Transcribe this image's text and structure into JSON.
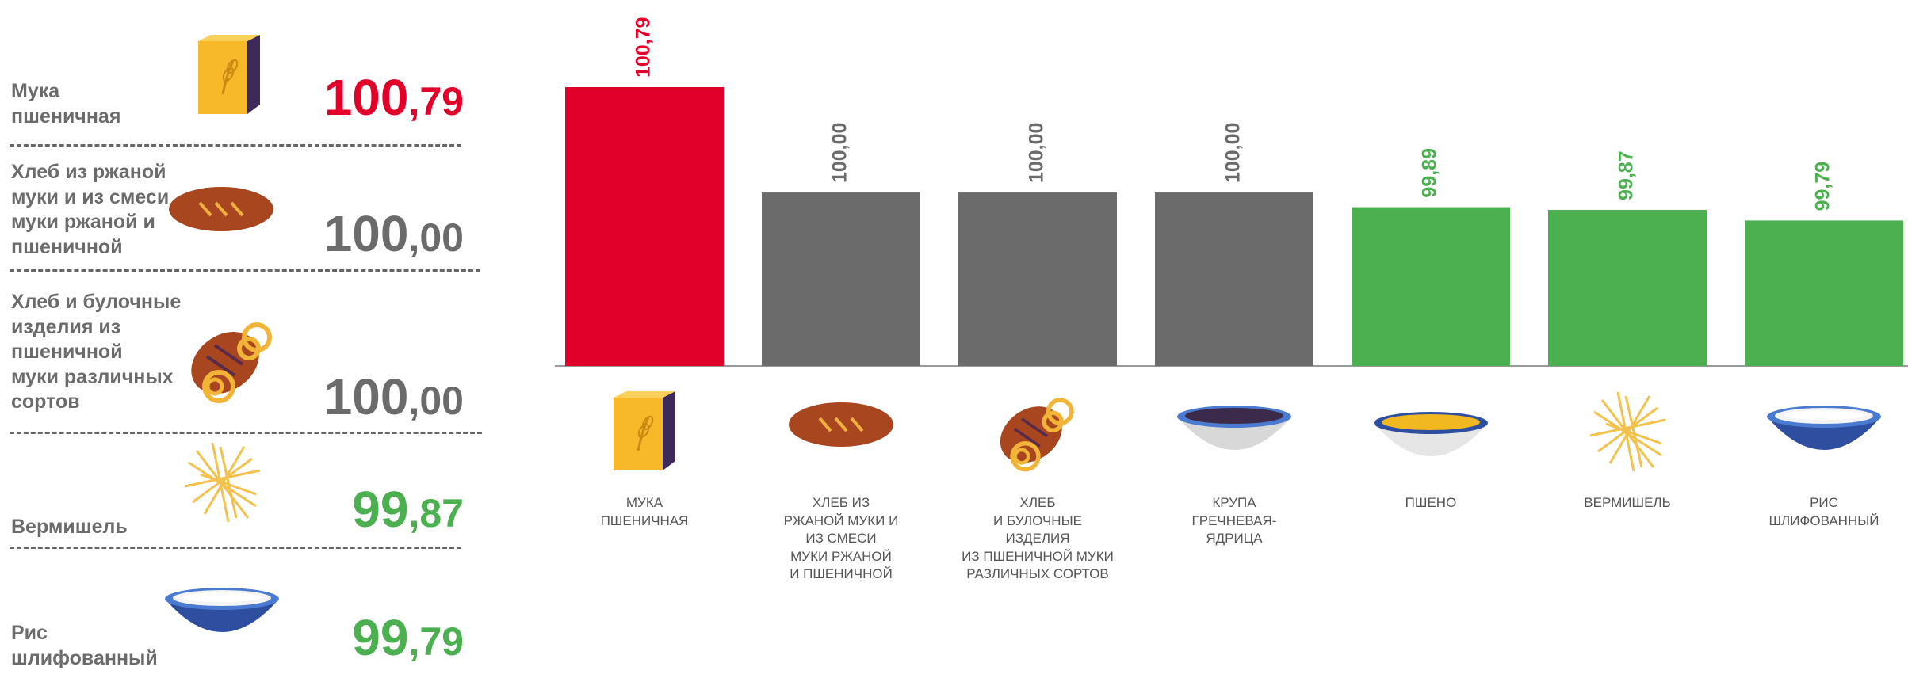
{
  "colors": {
    "red": "#e1002a",
    "gray": "#6b6b6b",
    "green": "#4caf50",
    "axis": "#999999"
  },
  "left_list": [
    {
      "label": "Мука\nпшеничная",
      "int": "100",
      "dec": ",79",
      "color": "#e1002a",
      "icon": "flour-bag-icon"
    },
    {
      "label": "Хлеб из ржаной\nмуки и из смеси\nмуки ржаной и\nпшеничной",
      "int": "100",
      "dec": ",00",
      "color": "#6b6b6b",
      "icon": "rye-bread-icon"
    },
    {
      "label": "Хлеб и булочные\nизделия из\nпшеничной\nмуки различных\nсортов",
      "int": "100",
      "dec": ",00",
      "color": "#6b6b6b",
      "icon": "bread-pretzel-icon"
    },
    {
      "label": "Вермишель",
      "int": "99",
      "dec": ",87",
      "color": "#4caf50",
      "icon": "vermicelli-icon"
    },
    {
      "label": "Рис\nшлифованный",
      "int": "99",
      "dec": ",79",
      "color": "#4caf50",
      "icon": "rice-bowl-icon"
    }
  ],
  "chart_data": {
    "type": "bar",
    "title": "",
    "xlabel": "",
    "ylabel": "",
    "categories": [
      "МУКА\nПШЕНИЧНАЯ",
      "ХЛЕБ ИЗ\nРЖАНОЙ МУКИ И\nИЗ СМЕСИ\nМУКИ РЖАНОЙ\nИ ПШЕНИЧНОЙ",
      "ХЛЕБ\nИ БУЛОЧНЫЕ\nИЗДЕЛИЯ\nИЗ ПШЕНИЧНОЙ МУКИ\nРАЗЛИЧНЫХ СОРТОВ",
      "КРУПА\nГРЕЧНЕВАЯ-\nЯДРИЦА",
      "ПШЕНО",
      "ВЕРМИШЕЛЬ",
      "РИС\nШЛИФОВАННЫЙ"
    ],
    "values": [
      100.79,
      100.0,
      100.0,
      100.0,
      99.89,
      99.87,
      99.79
    ],
    "value_labels": [
      "100,79",
      "100,00",
      "100,00",
      "100,00",
      "99,89",
      "99,87",
      "99,79"
    ],
    "bar_colors": [
      "#e1002a",
      "#6b6b6b",
      "#6b6b6b",
      "#6b6b6b",
      "#4caf50",
      "#4caf50",
      "#4caf50"
    ],
    "icons": [
      "flour-bag-icon",
      "rye-bread-icon",
      "bread-pretzel-icon",
      "buckwheat-bowl-icon",
      "millet-bowl-icon",
      "vermicelli-icon",
      "rice-bowl-icon"
    ],
    "value_axis_min": 98.7,
    "grid": false,
    "legend": "none"
  }
}
